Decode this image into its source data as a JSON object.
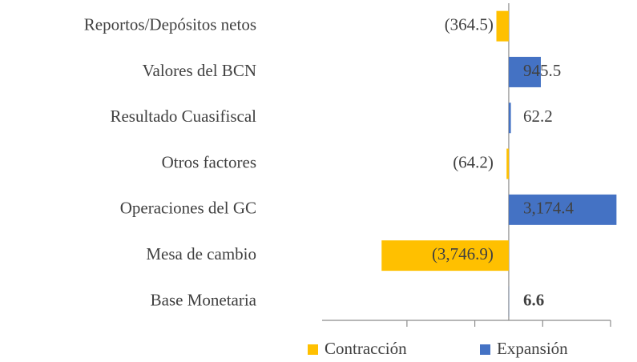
{
  "chart_data": {
    "type": "hbar",
    "categories": [
      "Reportos/Depósitos netos",
      "Valores del BCN",
      "Resultado Cuasifiscal",
      "Otros factores",
      "Operaciones del GC",
      "Mesa de cambio",
      "Base Monetaria"
    ],
    "series": [
      {
        "name": "Contracción",
        "color": "#ffc000",
        "values": [
          -364.5,
          null,
          null,
          -64.2,
          null,
          -3746.9,
          null
        ],
        "value_labels": [
          "(364.5)",
          null,
          null,
          "(64.2)",
          null,
          "(3,746.9)",
          null
        ]
      },
      {
        "name": "Expansión",
        "color": "#4472c4",
        "values": [
          null,
          945.5,
          62.2,
          null,
          3174.4,
          null,
          6.6
        ],
        "value_labels": [
          null,
          "945.5",
          "62.2",
          null,
          "3,174.4",
          null,
          "6.6"
        ]
      }
    ],
    "xlim": [
      -5500,
      3000
    ],
    "xticks": [
      -3000,
      -1000,
      1000,
      3000
    ],
    "legend": "bottom"
  }
}
